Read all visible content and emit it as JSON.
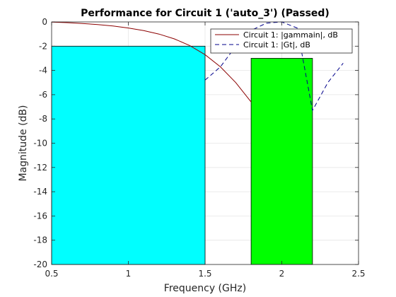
{
  "chart_data": {
    "type": "line",
    "title": "Performance for Circuit 1 ('auto_3')  (Passed)",
    "xlabel": "Frequency (GHz)",
    "ylabel": "Magnitude (dB)",
    "xlim": [
      0.5,
      2.5
    ],
    "ylim": [
      -20,
      0
    ],
    "xticks": [
      0.5,
      1,
      1.5,
      2,
      2.5
    ],
    "xtick_labels": [
      "0.5",
      "1",
      "1.5",
      "2",
      "2.5"
    ],
    "yticks": [
      0,
      -2,
      -4,
      -6,
      -8,
      -10,
      -12,
      -14,
      -16,
      -18,
      -20
    ],
    "ytick_labels": [
      "0",
      "-2",
      "-4",
      "-6",
      "-8",
      "-10",
      "-12",
      "-14",
      "-16",
      "-18",
      "-20"
    ],
    "grid": true,
    "legend_position": "top-right",
    "spec_regions": [
      {
        "x_start": 0.5,
        "x_end": 1.5,
        "y_top": -2,
        "y_bottom": -20,
        "color": "#00ffff"
      },
      {
        "x_start": 1.8,
        "x_end": 2.2,
        "y_top": -3,
        "y_bottom": -20,
        "color": "#00ff00"
      }
    ],
    "series": [
      {
        "name": "Circuit 1: |gammain|, dB",
        "color": "#8b0000",
        "dash": "solid",
        "x": [
          0.5,
          0.6,
          0.7,
          0.8,
          0.9,
          1.0,
          1.1,
          1.2,
          1.3,
          1.4,
          1.5,
          1.6,
          1.7,
          1.8
        ],
        "y": [
          -0.02,
          -0.06,
          -0.13,
          -0.22,
          -0.34,
          -0.5,
          -0.72,
          -1.0,
          -1.4,
          -1.95,
          -2.7,
          -3.7,
          -5.0,
          -6.6
        ]
      },
      {
        "name": "Circuit 1: |Gt|, dB",
        "color": "#00008b",
        "dash": "dashed",
        "x": [
          1.5,
          1.6,
          1.7,
          1.8,
          1.9,
          2.0,
          2.1,
          2.2,
          2.3,
          2.4
        ],
        "y": [
          -4.8,
          -3.7,
          -2.0,
          -0.7,
          -0.1,
          0.0,
          -0.5,
          -7.3,
          -5.0,
          -3.4
        ]
      }
    ]
  }
}
